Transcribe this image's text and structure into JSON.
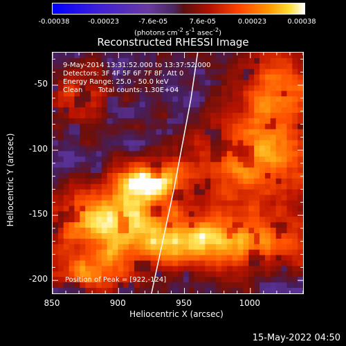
{
  "chart_data": {
    "type": "heatmap",
    "title": "Reconstructed RHESSI Image",
    "xlabel": "Heliocentric X (arcsec)",
    "ylabel": "Heliocentric Y (arcsec)",
    "xlim": [
      850,
      1040
    ],
    "ylim": [
      -210,
      -25
    ],
    "x_ticks": [
      "850",
      "900",
      "950",
      "1000"
    ],
    "y_ticks": [
      "-50",
      "-100",
      "-150",
      "-200"
    ],
    "colorbar": {
      "ticks": [
        "-0.00038",
        "-0.00023",
        "-7.6e-05",
        "7.6e-05",
        "0.00023",
        "0.00038"
      ],
      "range": [
        -0.00038,
        0.00038
      ],
      "unit_parts": [
        "(photons cm",
        "-2",
        " s",
        "-1",
        " asec",
        "-2",
        ")"
      ]
    },
    "annotations": {
      "time": "9-May-2014 13:31:52.000 to 13:37:52.000",
      "detectors": "Detectors: 3F 4F 5F 6F 7F 8F, Att 0",
      "energy": "Energy Range: 25.0 - 50.0 keV",
      "clean_label": "Clean",
      "counts": "Total counts: 1.30E+04",
      "peak": "Position of Peak = [922,-124]"
    },
    "peak": [
      922,
      -124
    ],
    "limb_curve": [
      [
        925,
        -210
      ],
      [
        942,
        -130
      ],
      [
        955,
        -60
      ],
      [
        960,
        -25
      ]
    ]
  },
  "footer": {
    "timestamp": "15-May-2022 04:50"
  },
  "colors": {
    "background": "#000000",
    "text": "#ffffff"
  }
}
